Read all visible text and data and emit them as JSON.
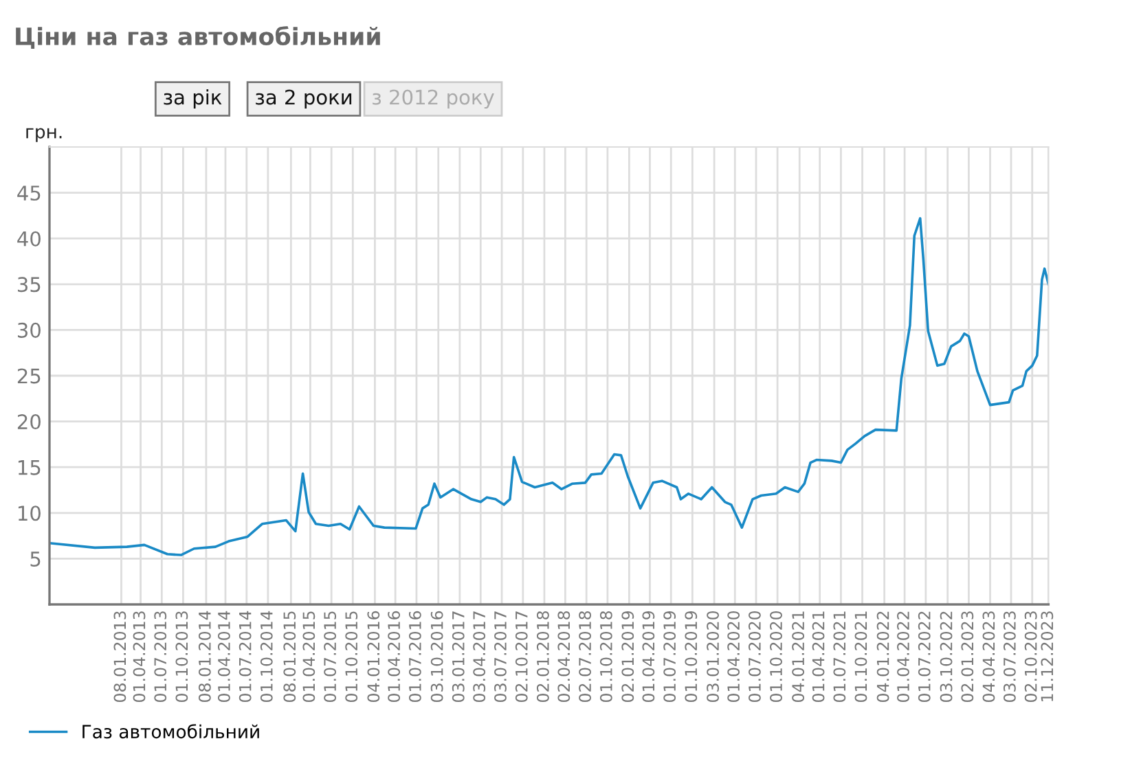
{
  "chart_data": {
    "type": "line",
    "title": "Ціни на газ автомобільний",
    "ylabel": "грн.",
    "annotations": [
      "за рік",
      "за 2 роки",
      "з 2012 року"
    ],
    "x": [
      "2012-03-05",
      "2012-09-16",
      "2013-02-01",
      "2013-04-17",
      "2013-07-25",
      "2013-09-22",
      "2013-11-17",
      "2014-02-17",
      "2014-04-15",
      "2014-07-05",
      "2014-09-06",
      "2014-12-18",
      "2015-01-27",
      "2015-02-28",
      "2015-03-25",
      "2015-04-25",
      "2015-06-19",
      "2015-08-09",
      "2015-09-17",
      "2015-10-28",
      "2015-12-29",
      "2016-02-14",
      "2016-06-28",
      "2016-07-27",
      "2016-08-21",
      "2016-09-16",
      "2016-10-12",
      "2016-12-06",
      "2017-02-22",
      "2017-04-03",
      "2017-04-30",
      "2017-06-06",
      "2017-07-12",
      "2017-08-07",
      "2017-08-24",
      "2017-09-28",
      "2017-11-22",
      "2018-02-06",
      "2018-03-17",
      "2018-05-03",
      "2018-06-27",
      "2018-07-23",
      "2018-09-05",
      "2018-10-30",
      "2018-11-28",
      "2018-12-27",
      "2019-02-19",
      "2019-04-15",
      "2019-05-23",
      "2019-07-26",
      "2019-08-12",
      "2019-09-14",
      "2019-11-08",
      "2019-12-24",
      "2020-02-18",
      "2020-03-16",
      "2020-05-01",
      "2020-06-16",
      "2020-07-23",
      "2020-09-25",
      "2020-11-02",
      "2020-12-29",
      "2021-01-25",
      "2021-02-20",
      "2021-03-18",
      "2021-05-22",
      "2021-07-01",
      "2021-07-29",
      "2021-09-03",
      "2021-10-11",
      "2021-11-27",
      "2022-02-25",
      "2022-03-18",
      "2022-04-24",
      "2022-05-13",
      "2022-06-07",
      "2022-06-21",
      "2022-07-11",
      "2022-08-20",
      "2022-09-19",
      "2022-10-18",
      "2022-11-25",
      "2022-12-14",
      "2023-01-02",
      "2023-02-08",
      "2023-04-04",
      "2023-06-24",
      "2023-07-11",
      "2023-08-21",
      "2023-09-07",
      "2023-10-02",
      "2023-10-23",
      "2023-11-13",
      "2023-11-24",
      "2023-12-11"
    ],
    "series": [
      {
        "name": "Газ автомобільний",
        "color": "#1a8ac6",
        "values": [
          6.7,
          6.2,
          6.3,
          6.5,
          5.5,
          5.4,
          6.1,
          6.3,
          6.9,
          7.4,
          8.8,
          9.2,
          8.0,
          14.3,
          10.1,
          8.8,
          8.6,
          8.8,
          8.2,
          10.7,
          8.6,
          8.4,
          8.3,
          10.5,
          10.9,
          13.2,
          11.7,
          12.6,
          11.5,
          11.2,
          11.7,
          11.5,
          10.9,
          11.5,
          16.1,
          13.4,
          12.8,
          13.3,
          12.6,
          13.2,
          13.3,
          14.2,
          14.3,
          16.4,
          16.3,
          14.0,
          10.5,
          13.3,
          13.5,
          12.8,
          11.5,
          12.1,
          11.5,
          12.8,
          11.2,
          10.9,
          8.4,
          11.5,
          11.9,
          12.1,
          12.8,
          12.3,
          13.2,
          15.5,
          15.8,
          15.7,
          15.5,
          16.9,
          17.6,
          18.4,
          19.1,
          19.0,
          24.7,
          30.5,
          40.3,
          42.2,
          37.6,
          29.9,
          26.1,
          26.3,
          28.2,
          28.8,
          29.6,
          29.3,
          25.5,
          21.8,
          22.1,
          23.4,
          23.9,
          25.5,
          26.1,
          27.2,
          35.5,
          36.7,
          35.0
        ]
      }
    ],
    "xlim": [
      "2012-03-05",
      "2023-12-11"
    ],
    "xticks": [
      {
        "value": "2013-01-08",
        "label": "08.01.2013"
      },
      {
        "value": "2013-04-01",
        "label": "01.04.2013"
      },
      {
        "value": "2013-07-01",
        "label": "01.07.2013"
      },
      {
        "value": "2013-10-01",
        "label": "01.10.2013"
      },
      {
        "value": "2014-01-08",
        "label": "08.01.2014"
      },
      {
        "value": "2014-04-01",
        "label": "01.04.2014"
      },
      {
        "value": "2014-07-01",
        "label": "01.07.2014"
      },
      {
        "value": "2014-10-01",
        "label": "01.10.2014"
      },
      {
        "value": "2015-01-08",
        "label": "08.01.2015"
      },
      {
        "value": "2015-04-01",
        "label": "01.04.2015"
      },
      {
        "value": "2015-07-01",
        "label": "01.07.2015"
      },
      {
        "value": "2015-10-01",
        "label": "01.10.2015"
      },
      {
        "value": "2016-01-04",
        "label": "04.01.2016"
      },
      {
        "value": "2016-04-01",
        "label": "01.04.2016"
      },
      {
        "value": "2016-07-01",
        "label": "01.07.2016"
      },
      {
        "value": "2016-10-03",
        "label": "03.10.2016"
      },
      {
        "value": "2017-01-03",
        "label": "03.01.2017"
      },
      {
        "value": "2017-04-03",
        "label": "03.04.2017"
      },
      {
        "value": "2017-07-03",
        "label": "03.07.2017"
      },
      {
        "value": "2017-10-02",
        "label": "02.10.2017"
      },
      {
        "value": "2018-01-02",
        "label": "02.01.2018"
      },
      {
        "value": "2018-04-02",
        "label": "02.04.2018"
      },
      {
        "value": "2018-07-02",
        "label": "02.07.2018"
      },
      {
        "value": "2018-10-01",
        "label": "01.10.2018"
      },
      {
        "value": "2019-01-02",
        "label": "02.01.2019"
      },
      {
        "value": "2019-04-01",
        "label": "01.04.2019"
      },
      {
        "value": "2019-07-01",
        "label": "01.07.2019"
      },
      {
        "value": "2019-10-01",
        "label": "01.10.2019"
      },
      {
        "value": "2020-01-03",
        "label": "03.01.2020"
      },
      {
        "value": "2020-04-01",
        "label": "01.04.2020"
      },
      {
        "value": "2020-07-01",
        "label": "01.07.2020"
      },
      {
        "value": "2020-10-01",
        "label": "01.10.2020"
      },
      {
        "value": "2021-01-04",
        "label": "04.01.2021"
      },
      {
        "value": "2021-04-01",
        "label": "01.04.2021"
      },
      {
        "value": "2021-07-01",
        "label": "01.07.2021"
      },
      {
        "value": "2021-10-01",
        "label": "01.10.2021"
      },
      {
        "value": "2022-01-04",
        "label": "04.01.2022"
      },
      {
        "value": "2022-04-01",
        "label": "01.04.2022"
      },
      {
        "value": "2022-07-01",
        "label": "01.07.2022"
      },
      {
        "value": "2022-10-03",
        "label": "03.10.2022"
      },
      {
        "value": "2023-01-02",
        "label": "02.01.2023"
      },
      {
        "value": "2023-04-04",
        "label": "04.04.2023"
      },
      {
        "value": "2023-07-03",
        "label": "03.07.2023"
      },
      {
        "value": "2023-10-02",
        "label": "02.10.2023"
      },
      {
        "value": "2023-12-11",
        "label": "11.12.2023"
      }
    ],
    "ylim": [
      0,
      50
    ],
    "yticks": [
      5,
      10,
      15,
      20,
      25,
      30,
      35,
      40,
      45
    ],
    "grid": true,
    "legend": "bottom left",
    "marker": "none",
    "line_style": "solid"
  }
}
